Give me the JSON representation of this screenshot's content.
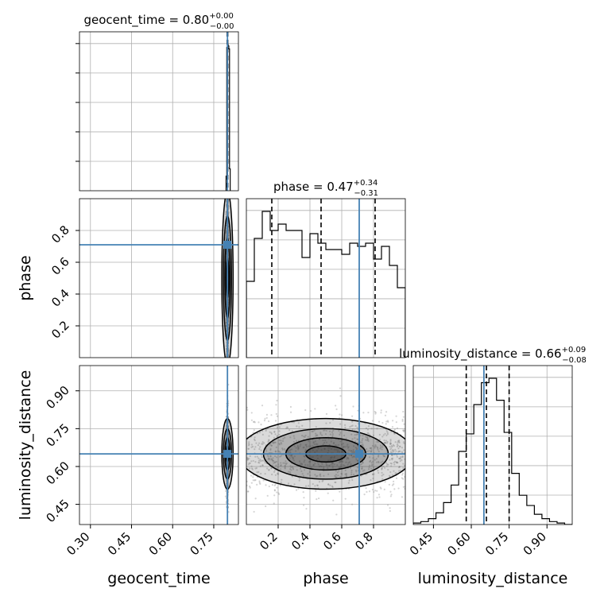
{
  "chart_data": {
    "type": "corner",
    "parameters": [
      "geocent_time",
      "phase",
      "luminosity_distance"
    ],
    "truth": {
      "geocent_time": 0.8,
      "phase": 0.71,
      "luminosity_distance": 0.65
    },
    "colors": {
      "truth": "#4682b4",
      "hist": "#000000",
      "grid": "#b0b0b0",
      "scatter": "#888888"
    },
    "grid": true,
    "titles": [
      {
        "name": "geocent_time",
        "value": "0.80",
        "plus": "+0.00",
        "minus": "−0.00"
      },
      {
        "name": "phase",
        "value": "0.47",
        "plus": "+0.34",
        "minus": "−0.31"
      },
      {
        "name": "luminosity_distance",
        "value": "0.66",
        "plus": "+0.09",
        "minus": "−0.08"
      }
    ],
    "axes": {
      "geocent_time": {
        "label": "geocent_time",
        "range": [
          0.26,
          0.84
        ],
        "ticks": [
          0.3,
          0.45,
          0.6,
          0.75
        ],
        "tick_labels": [
          "0.30",
          "0.45",
          "0.60",
          "0.75"
        ]
      },
      "phase": {
        "label": "phase",
        "range": [
          0.0,
          1.0
        ],
        "ticks": [
          0.2,
          0.4,
          0.6,
          0.8
        ],
        "tick_labels": [
          "0.2",
          "0.4",
          "0.6",
          "0.8"
        ]
      },
      "luminosity_distance": {
        "label": "luminosity_distance",
        "range": [
          0.37,
          1.0
        ],
        "ticks": [
          0.45,
          0.6,
          0.75,
          0.9
        ],
        "tick_labels": [
          "0.45",
          "0.60",
          "0.75",
          "0.90"
        ]
      }
    },
    "marginals": {
      "geocent_time": {
        "bins": [
          0.795,
          0.7975,
          0.8,
          0.8025,
          0.805,
          0.8075,
          0.81
        ],
        "counts": [
          0.1,
          0.98,
          1.0,
          0.99,
          0.97,
          0.15
        ],
        "quantiles": [
          0.799,
          0.8,
          0.801
        ]
      },
      "phase": {
        "bins": [
          0.0,
          0.05,
          0.1,
          0.15,
          0.2,
          0.25,
          0.3,
          0.35,
          0.4,
          0.45,
          0.5,
          0.55,
          0.6,
          0.65,
          0.7,
          0.75,
          0.8,
          0.85,
          0.9,
          0.95,
          1.0
        ],
        "counts": [
          0.48,
          0.75,
          0.92,
          0.8,
          0.84,
          0.8,
          0.8,
          0.63,
          0.78,
          0.72,
          0.68,
          0.68,
          0.65,
          0.72,
          0.7,
          0.72,
          0.62,
          0.7,
          0.58,
          0.44
        ],
        "quantiles": [
          0.16,
          0.47,
          0.81
        ]
      },
      "luminosity_distance": {
        "bins": [
          0.37,
          0.4,
          0.43,
          0.46,
          0.49,
          0.52,
          0.55,
          0.58,
          0.61,
          0.64,
          0.67,
          0.7,
          0.73,
          0.76,
          0.79,
          0.82,
          0.85,
          0.88,
          0.91,
          0.94,
          0.97,
          1.0
        ],
        "counts": [
          0.01,
          0.02,
          0.04,
          0.08,
          0.15,
          0.27,
          0.5,
          0.62,
          0.82,
          0.97,
          1.0,
          0.85,
          0.63,
          0.35,
          0.2,
          0.13,
          0.07,
          0.04,
          0.02,
          0.01,
          0.0
        ],
        "quantiles": [
          0.58,
          0.66,
          0.75
        ]
      }
    },
    "joint": [
      {
        "x": "geocent_time",
        "y": "phase",
        "center": [
          0.8,
          0.5
        ],
        "spread": [
          0.002,
          0.3
        ]
      },
      {
        "x": "geocent_time",
        "y": "luminosity_distance",
        "center": [
          0.8,
          0.65
        ],
        "spread": [
          0.002,
          0.08
        ]
      },
      {
        "x": "phase",
        "y": "luminosity_distance",
        "center": [
          0.5,
          0.65
        ],
        "spread": [
          0.3,
          0.08
        ]
      }
    ]
  }
}
